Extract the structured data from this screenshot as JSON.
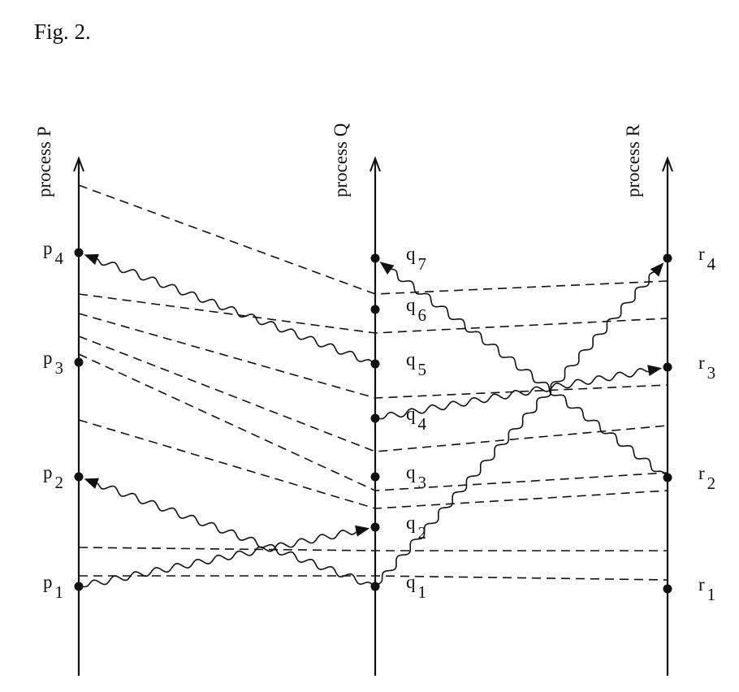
{
  "title": "Fig. 2.",
  "processes": [
    {
      "label": "process P",
      "events": [
        {
          "name": "p",
          "sub": "1"
        },
        {
          "name": "p",
          "sub": "2"
        },
        {
          "name": "p",
          "sub": "3"
        },
        {
          "name": "p",
          "sub": "4"
        }
      ]
    },
    {
      "label": "process Q",
      "events": [
        {
          "name": "q",
          "sub": "1"
        },
        {
          "name": "q",
          "sub": "2"
        },
        {
          "name": "q",
          "sub": "3"
        },
        {
          "name": "q",
          "sub": "4"
        },
        {
          "name": "q",
          "sub": "5"
        },
        {
          "name": "q",
          "sub": "6"
        },
        {
          "name": "q",
          "sub": "7"
        }
      ]
    },
    {
      "label": "process R",
      "events": [
        {
          "name": "r",
          "sub": "1"
        },
        {
          "name": "r",
          "sub": "2"
        },
        {
          "name": "r",
          "sub": "3"
        },
        {
          "name": "r",
          "sub": "4"
        }
      ]
    }
  ]
}
